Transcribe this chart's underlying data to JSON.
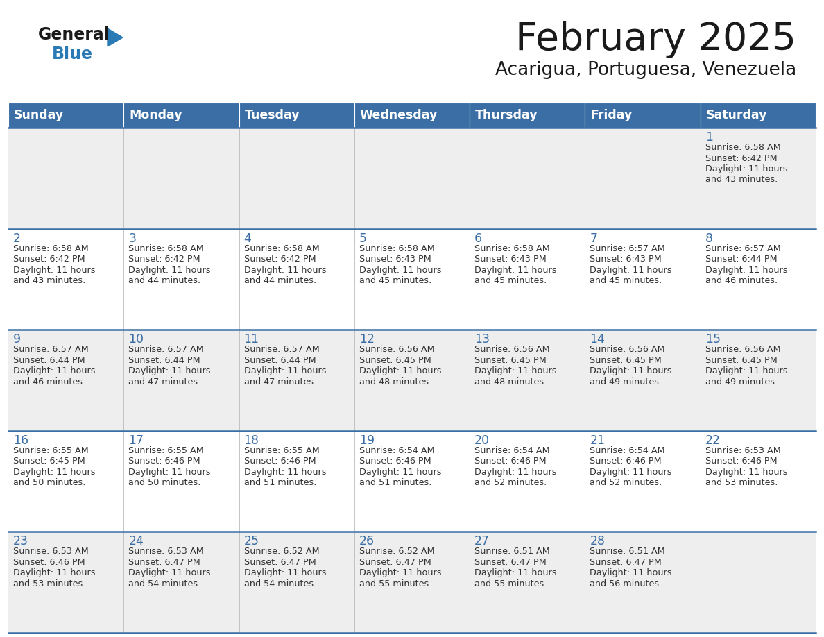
{
  "title": "February 2025",
  "subtitle": "Acarigua, Portuguesa, Venezuela",
  "header_bg": "#3a6ea5",
  "header_text_color": "#ffffff",
  "day_names": [
    "Sunday",
    "Monday",
    "Tuesday",
    "Wednesday",
    "Thursday",
    "Friday",
    "Saturday"
  ],
  "row_bg_odd": "#eeeeee",
  "row_bg_even": "#ffffff",
  "cell_border_color": "#3a6ea5",
  "title_color": "#1a1a1a",
  "subtitle_color": "#1a1a1a",
  "day_number_color": "#3a6ea5",
  "info_text_color": "#333333",
  "logo_general_color": "#1a1a1a",
  "logo_blue_color": "#2a7ab5",
  "calendar_data": [
    [
      null,
      null,
      null,
      null,
      null,
      null,
      {
        "day": 1,
        "sunrise": "6:58 AM",
        "sunset": "6:42 PM",
        "daylight_h": "11",
        "daylight_m": "43"
      }
    ],
    [
      {
        "day": 2,
        "sunrise": "6:58 AM",
        "sunset": "6:42 PM",
        "daylight_h": "11",
        "daylight_m": "43"
      },
      {
        "day": 3,
        "sunrise": "6:58 AM",
        "sunset": "6:42 PM",
        "daylight_h": "11",
        "daylight_m": "44"
      },
      {
        "day": 4,
        "sunrise": "6:58 AM",
        "sunset": "6:42 PM",
        "daylight_h": "11",
        "daylight_m": "44"
      },
      {
        "day": 5,
        "sunrise": "6:58 AM",
        "sunset": "6:43 PM",
        "daylight_h": "11",
        "daylight_m": "45"
      },
      {
        "day": 6,
        "sunrise": "6:58 AM",
        "sunset": "6:43 PM",
        "daylight_h": "11",
        "daylight_m": "45"
      },
      {
        "day": 7,
        "sunrise": "6:57 AM",
        "sunset": "6:43 PM",
        "daylight_h": "11",
        "daylight_m": "45"
      },
      {
        "day": 8,
        "sunrise": "6:57 AM",
        "sunset": "6:44 PM",
        "daylight_h": "11",
        "daylight_m": "46"
      }
    ],
    [
      {
        "day": 9,
        "sunrise": "6:57 AM",
        "sunset": "6:44 PM",
        "daylight_h": "11",
        "daylight_m": "46"
      },
      {
        "day": 10,
        "sunrise": "6:57 AM",
        "sunset": "6:44 PM",
        "daylight_h": "11",
        "daylight_m": "47"
      },
      {
        "day": 11,
        "sunrise": "6:57 AM",
        "sunset": "6:44 PM",
        "daylight_h": "11",
        "daylight_m": "47"
      },
      {
        "day": 12,
        "sunrise": "6:56 AM",
        "sunset": "6:45 PM",
        "daylight_h": "11",
        "daylight_m": "48"
      },
      {
        "day": 13,
        "sunrise": "6:56 AM",
        "sunset": "6:45 PM",
        "daylight_h": "11",
        "daylight_m": "48"
      },
      {
        "day": 14,
        "sunrise": "6:56 AM",
        "sunset": "6:45 PM",
        "daylight_h": "11",
        "daylight_m": "49"
      },
      {
        "day": 15,
        "sunrise": "6:56 AM",
        "sunset": "6:45 PM",
        "daylight_h": "11",
        "daylight_m": "49"
      }
    ],
    [
      {
        "day": 16,
        "sunrise": "6:55 AM",
        "sunset": "6:45 PM",
        "daylight_h": "11",
        "daylight_m": "50"
      },
      {
        "day": 17,
        "sunrise": "6:55 AM",
        "sunset": "6:46 PM",
        "daylight_h": "11",
        "daylight_m": "50"
      },
      {
        "day": 18,
        "sunrise": "6:55 AM",
        "sunset": "6:46 PM",
        "daylight_h": "11",
        "daylight_m": "51"
      },
      {
        "day": 19,
        "sunrise": "6:54 AM",
        "sunset": "6:46 PM",
        "daylight_h": "11",
        "daylight_m": "51"
      },
      {
        "day": 20,
        "sunrise": "6:54 AM",
        "sunset": "6:46 PM",
        "daylight_h": "11",
        "daylight_m": "52"
      },
      {
        "day": 21,
        "sunrise": "6:54 AM",
        "sunset": "6:46 PM",
        "daylight_h": "11",
        "daylight_m": "52"
      },
      {
        "day": 22,
        "sunrise": "6:53 AM",
        "sunset": "6:46 PM",
        "daylight_h": "11",
        "daylight_m": "53"
      }
    ],
    [
      {
        "day": 23,
        "sunrise": "6:53 AM",
        "sunset": "6:46 PM",
        "daylight_h": "11",
        "daylight_m": "53"
      },
      {
        "day": 24,
        "sunrise": "6:53 AM",
        "sunset": "6:47 PM",
        "daylight_h": "11",
        "daylight_m": "54"
      },
      {
        "day": 25,
        "sunrise": "6:52 AM",
        "sunset": "6:47 PM",
        "daylight_h": "11",
        "daylight_m": "54"
      },
      {
        "day": 26,
        "sunrise": "6:52 AM",
        "sunset": "6:47 PM",
        "daylight_h": "11",
        "daylight_m": "55"
      },
      {
        "day": 27,
        "sunrise": "6:51 AM",
        "sunset": "6:47 PM",
        "daylight_h": "11",
        "daylight_m": "55"
      },
      {
        "day": 28,
        "sunrise": "6:51 AM",
        "sunset": "6:47 PM",
        "daylight_h": "11",
        "daylight_m": "56"
      },
      null
    ]
  ]
}
